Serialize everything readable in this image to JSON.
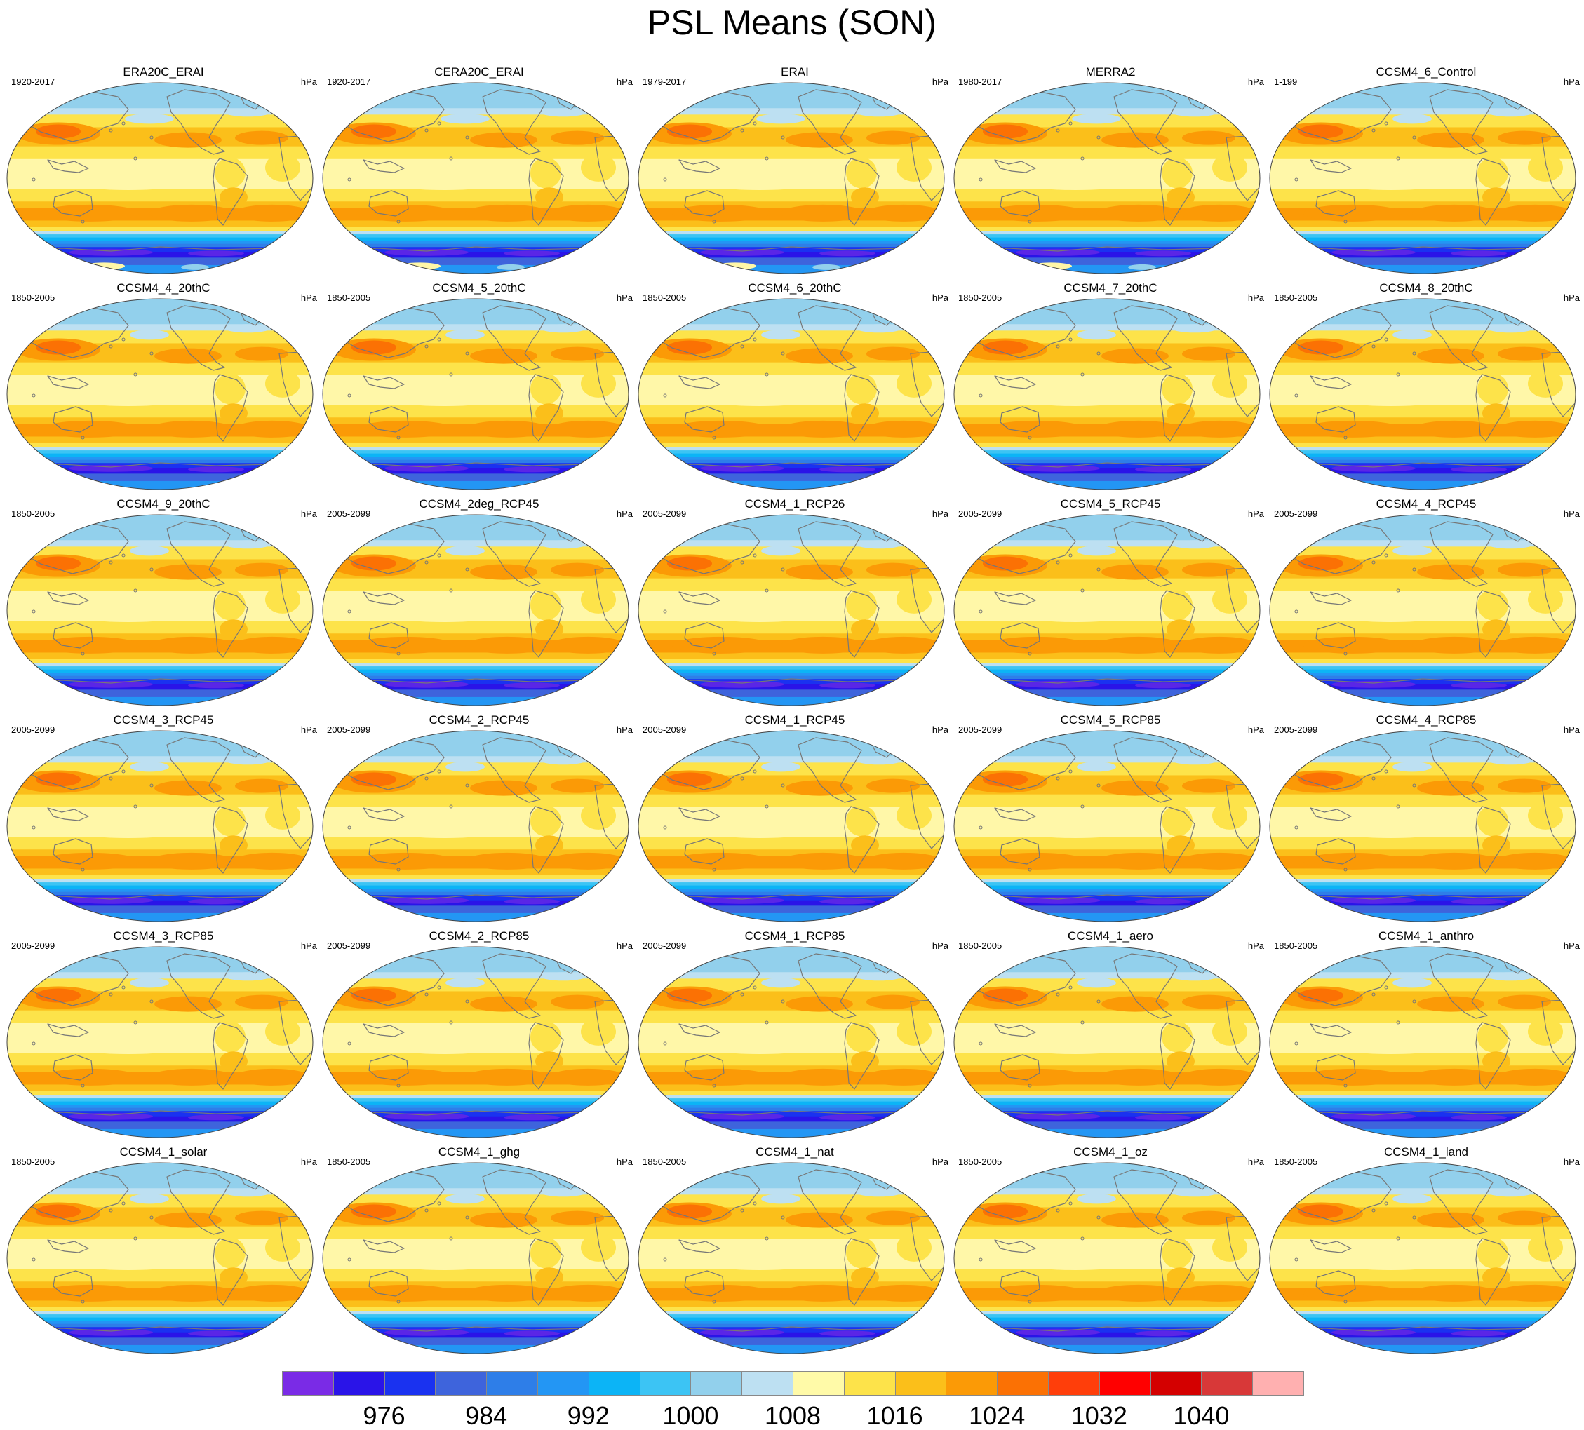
{
  "title": "PSL Means (SON)",
  "units": "hPa",
  "panels": [
    {
      "name": "ERA20C_ERAI",
      "years": "1920-2017",
      "type": "reanalysis"
    },
    {
      "name": "CERA20C_ERAI",
      "years": "1920-2017",
      "type": "reanalysis"
    },
    {
      "name": "ERAI",
      "years": "1979-2017",
      "type": "reanalysis"
    },
    {
      "name": "MERRA2",
      "years": "1980-2017",
      "type": "reanalysis"
    },
    {
      "name": "CCSM4_6_Control",
      "years": "1-199",
      "type": "model"
    },
    {
      "name": "CCSM4_4_20thC",
      "years": "1850-2005",
      "type": "model"
    },
    {
      "name": "CCSM4_5_20thC",
      "years": "1850-2005",
      "type": "model"
    },
    {
      "name": "CCSM4_6_20thC",
      "years": "1850-2005",
      "type": "model"
    },
    {
      "name": "CCSM4_7_20thC",
      "years": "1850-2005",
      "type": "model"
    },
    {
      "name": "CCSM4_8_20thC",
      "years": "1850-2005",
      "type": "model"
    },
    {
      "name": "CCSM4_9_20thC",
      "years": "1850-2005",
      "type": "model"
    },
    {
      "name": "CCSM4_2deg_RCP45",
      "years": "2005-2099",
      "type": "model"
    },
    {
      "name": "CCSM4_1_RCP26",
      "years": "2005-2099",
      "type": "model"
    },
    {
      "name": "CCSM4_5_RCP45",
      "years": "2005-2099",
      "type": "model"
    },
    {
      "name": "CCSM4_4_RCP45",
      "years": "2005-2099",
      "type": "model"
    },
    {
      "name": "CCSM4_3_RCP45",
      "years": "2005-2099",
      "type": "model"
    },
    {
      "name": "CCSM4_2_RCP45",
      "years": "2005-2099",
      "type": "model"
    },
    {
      "name": "CCSM4_1_RCP45",
      "years": "2005-2099",
      "type": "model"
    },
    {
      "name": "CCSM4_5_RCP85",
      "years": "2005-2099",
      "type": "model"
    },
    {
      "name": "CCSM4_4_RCP85",
      "years": "2005-2099",
      "type": "model"
    },
    {
      "name": "CCSM4_3_RCP85",
      "years": "2005-2099",
      "type": "model"
    },
    {
      "name": "CCSM4_2_RCP85",
      "years": "2005-2099",
      "type": "model"
    },
    {
      "name": "CCSM4_1_RCP85",
      "years": "2005-2099",
      "type": "model"
    },
    {
      "name": "CCSM4_1_aero",
      "years": "1850-2005",
      "type": "model"
    },
    {
      "name": "CCSM4_1_anthro",
      "years": "1850-2005",
      "type": "model"
    },
    {
      "name": "CCSM4_1_solar",
      "years": "1850-2005",
      "type": "model"
    },
    {
      "name": "CCSM4_1_ghg",
      "years": "1850-2005",
      "type": "model"
    },
    {
      "name": "CCSM4_1_nat",
      "years": "1850-2005",
      "type": "model"
    },
    {
      "name": "CCSM4_1_oz",
      "years": "1850-2005",
      "type": "model"
    },
    {
      "name": "CCSM4_1_land",
      "years": "1850-2005",
      "type": "model"
    }
  ],
  "colorbar": {
    "colors": [
      "#7a2be6",
      "#2a14e8",
      "#1a32f0",
      "#3e64dc",
      "#2e7ee8",
      "#2396f4",
      "#0cb4f6",
      "#3cc4f4",
      "#92d0ec",
      "#bde0f2",
      "#fffaa8",
      "#fde34a",
      "#fbbf1a",
      "#fb9a06",
      "#fb7104",
      "#ff3e0a",
      "#ff0000",
      "#d40000",
      "#d83838",
      "#ffb0b0"
    ],
    "labels": [
      "976",
      "984",
      "992",
      "1000",
      "1008",
      "1016",
      "1024",
      "1032",
      "1040"
    ]
  },
  "map_colors": {
    "ocean_pale": "#fff7a8",
    "mid": "#fde34a",
    "high": "#fbbf1a",
    "subtropical_high": "#fb9a06",
    "siberian_high": "#fb7104",
    "arctic": "#92d0ec",
    "arctic_light": "#bde0f2",
    "southern_ocean": [
      "#3cc4f4",
      "#0cb4f6",
      "#2396f4",
      "#2e7ee8",
      "#3e64dc",
      "#1a32f0",
      "#2a14e8"
    ],
    "coast": "#777777"
  }
}
